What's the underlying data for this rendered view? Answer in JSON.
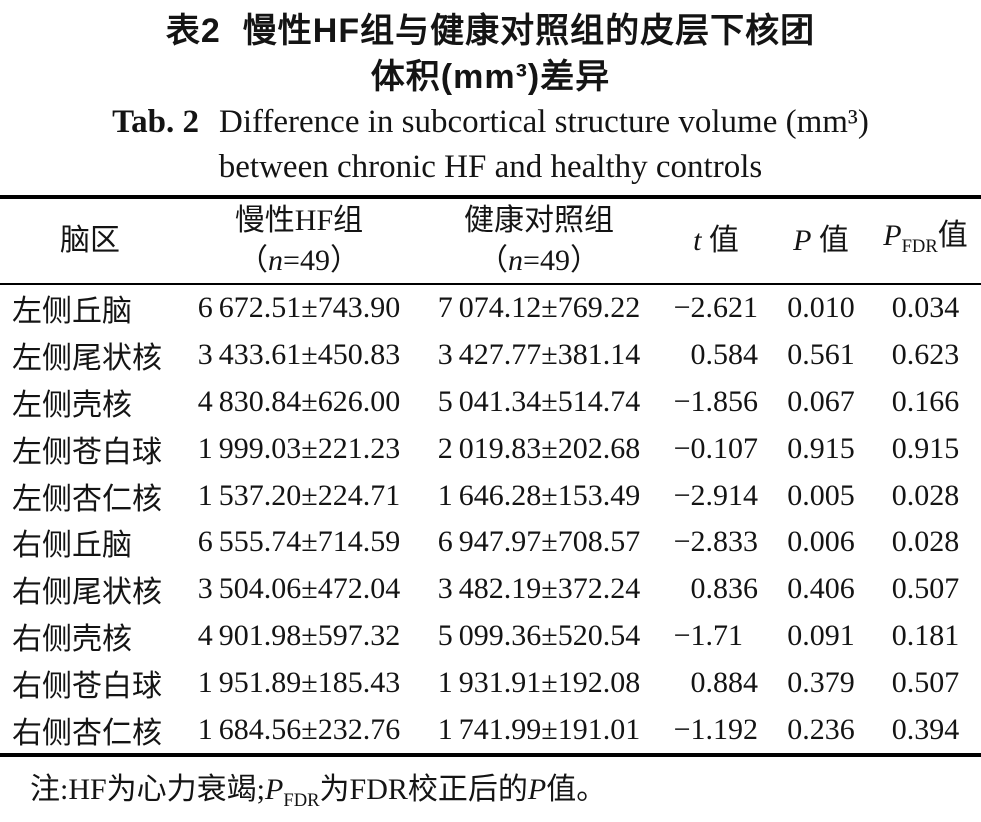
{
  "title": {
    "zh_label": "表2",
    "zh_line1": "慢性HF组与健康对照组的皮层下核团",
    "zh_line2": "体积(mm³)差异",
    "en_label": "Tab. 2",
    "en_line1": "Difference in subcortical structure volume (mm³)",
    "en_line2": "between chronic HF and healthy controls"
  },
  "table": {
    "headers": {
      "region": "脑区",
      "group1_line1": "慢性HF组",
      "group2_line1": "健康对照组",
      "n_open": "（",
      "n_italic": "n",
      "n_rest": "=49）",
      "t_italic": "t",
      "t_rest": " 值",
      "p_italic": "P",
      "p_rest": " 值",
      "pfdr_italic": "P",
      "pfdr_sub": "FDR",
      "pfdr_rest": "值"
    },
    "rows": [
      {
        "region": "左侧丘脑",
        "hf": "6 672.51±743.90",
        "hc": "7 074.12±769.22",
        "t": "−2.621",
        "p": "0.010",
        "pfdr": "0.034"
      },
      {
        "region": "左侧尾状核",
        "hf": "3 433.61±450.83",
        "hc": "3 427.77±381.14",
        "t": "0.584",
        "p": "0.561",
        "pfdr": "0.623"
      },
      {
        "region": "左侧壳核",
        "hf": "4 830.84±626.00",
        "hc": "5 041.34±514.74",
        "t": "−1.856",
        "p": "0.067",
        "pfdr": "0.166"
      },
      {
        "region": "左侧苍白球",
        "hf": "1 999.03±221.23",
        "hc": "2 019.83±202.68",
        "t": "−0.107",
        "p": "0.915",
        "pfdr": "0.915"
      },
      {
        "region": "左侧杏仁核",
        "hf": "1 537.20±224.71",
        "hc": "1 646.28±153.49",
        "t": "−2.914",
        "p": "0.005",
        "pfdr": "0.028"
      },
      {
        "region": "右侧丘脑",
        "hf": "6 555.74±714.59",
        "hc": "6 947.97±708.57",
        "t": "−2.833",
        "p": "0.006",
        "pfdr": "0.028"
      },
      {
        "region": "右侧尾状核",
        "hf": "3 504.06±472.04",
        "hc": "3 482.19±372.24",
        "t": "0.836",
        "p": "0.406",
        "pfdr": "0.507"
      },
      {
        "region": "右侧壳核",
        "hf": "4 901.98±597.32",
        "hc": "5 099.36±520.54",
        "t": "−1.71",
        "p": "0.091",
        "pfdr": "0.181"
      },
      {
        "region": "右侧苍白球",
        "hf": "1 951.89±185.43",
        "hc": "1 931.91±192.08",
        "t": "0.884",
        "p": "0.379",
        "pfdr": "0.507"
      },
      {
        "region": "右侧杏仁核",
        "hf": "1 684.56±232.76",
        "hc": "1 741.99±191.01",
        "t": "−1.192",
        "p": "0.236",
        "pfdr": "0.394"
      }
    ]
  },
  "footnote": {
    "part1": "注:HF为心力衰竭;",
    "p1_italic": "P",
    "p1_sub": "FDR",
    "part2": "为FDR校正后的",
    "p2_italic": "P",
    "part3": "值。"
  },
  "colors": {
    "text": "#141414",
    "rule": "#000000",
    "background": "#ffffff"
  }
}
